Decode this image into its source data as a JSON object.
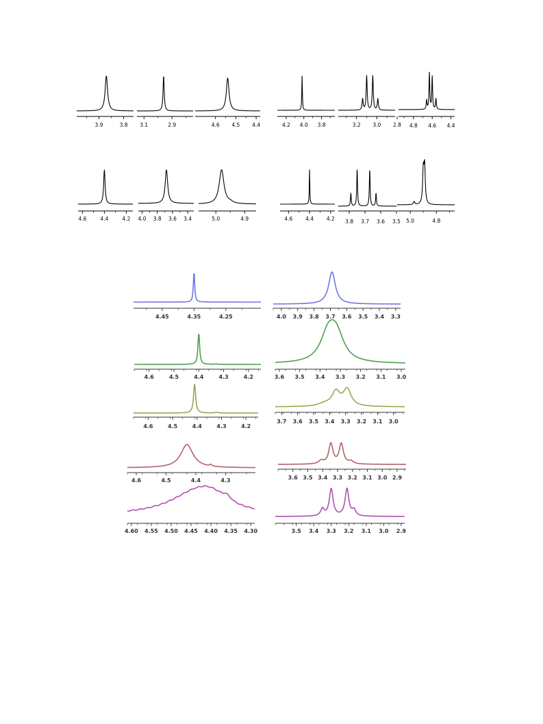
{
  "chart_data": [
    {
      "type": "line",
      "color": "#000000",
      "peaks": [
        [
          3.87,
          0.006,
          1
        ]
      ],
      "xlim": [
        3.99,
        3.76
      ],
      "ticks": [
        3.9,
        3.8
      ],
      "minor": [
        3.95,
        3.85
      ]
    },
    {
      "type": "line",
      "color": "#000000",
      "peaks": [
        [
          2.96,
          0.005,
          1
        ]
      ],
      "xlim": [
        3.15,
        2.75
      ],
      "ticks": [
        3.1,
        2.9
      ],
      "minor": [
        3.0,
        2.8
      ]
    },
    {
      "type": "line",
      "color": "#000000",
      "peaks": [
        [
          4.54,
          0.008,
          1
        ]
      ],
      "xlim": [
        4.7,
        4.38
      ],
      "ticks": [
        4.6,
        4.5,
        4.4
      ],
      "minor": [
        4.55,
        4.45
      ]
    },
    {
      "type": "line",
      "color": "#000000",
      "peaks": [
        [
          4.02,
          0.004,
          1
        ]
      ],
      "xlim": [
        4.3,
        3.65
      ],
      "ticks": [
        4.2,
        4.0,
        3.8
      ],
      "minor": [
        4.1,
        3.9,
        3.7
      ]
    },
    {
      "type": "line",
      "color": "#000000",
      "peaks": [
        [
          3.14,
          0.006,
          0.33
        ],
        [
          3.1,
          0.006,
          1
        ],
        [
          3.04,
          0.006,
          1
        ],
        [
          2.99,
          0.006,
          0.33
        ]
      ],
      "xlim": [
        3.38,
        2.82
      ],
      "ticks": [
        3.2,
        3.0,
        2.8
      ],
      "minor": [
        3.3,
        3.1,
        2.9
      ]
    },
    {
      "type": "line",
      "color": "#000000",
      "peaks": [
        [
          4.66,
          0.005,
          0.25
        ],
        [
          4.63,
          0.005,
          1
        ],
        [
          4.6,
          0.005,
          0.9
        ],
        [
          4.56,
          0.005,
          0.3
        ]
      ],
      "xlim": [
        4.96,
        4.36
      ],
      "ticks": [
        4.8,
        4.6,
        4.4
      ],
      "minor": [
        4.9,
        4.7,
        4.5
      ]
    },
    {
      "type": "line",
      "color": "#000000",
      "peaks": [
        [
          4.4,
          0.008,
          1
        ]
      ],
      "xlim": [
        4.64,
        4.14
      ],
      "ticks": [
        4.6,
        4.4,
        4.2
      ],
      "minor": [
        4.5,
        4.3
      ]
    },
    {
      "type": "line",
      "color": "#000000",
      "peaks": [
        [
          3.68,
          0.02,
          1
        ]
      ],
      "xlim": [
        4.05,
        3.32
      ],
      "ticks": [
        4.0,
        3.8,
        3.6,
        3.4
      ],
      "minor": [
        3.9,
        3.7,
        3.5
      ]
    },
    {
      "type": "line",
      "color": "#000000",
      "peaks": [
        [
          4.98,
          0.01,
          1
        ],
        [
          4.95,
          0.01,
          0.04
        ]
      ],
      "xlim": [
        5.06,
        4.86
      ],
      "ticks": [
        5.0,
        4.9
      ],
      "minor": [
        4.95
      ]
    },
    {
      "type": "line",
      "color": "#000000",
      "peaks": [
        [
          4.4,
          0.003,
          1
        ]
      ],
      "xlim": [
        4.68,
        4.16
      ],
      "ticks": [
        4.6,
        4.4,
        4.2
      ],
      "minor": [
        4.5,
        4.3
      ]
    },
    {
      "type": "line",
      "color": "#000000",
      "peaks": [
        [
          3.79,
          0.003,
          0.35
        ],
        [
          3.75,
          0.003,
          1
        ],
        [
          3.67,
          0.003,
          1
        ],
        [
          3.63,
          0.003,
          0.35
        ]
      ],
      "xlim": [
        3.87,
        3.5
      ],
      "ticks": [
        3.8,
        3.7,
        3.6,
        3.5
      ],
      "minor": []
    },
    {
      "type": "line",
      "color": "#000000",
      "peaks": [
        [
          4.97,
          0.006,
          0.08
        ],
        [
          4.9,
          0.006,
          0.85
        ],
        [
          4.89,
          0.006,
          0.95
        ]
      ],
      "xlim": [
        5.1,
        4.66
      ],
      "ticks": [
        5.0,
        4.8
      ],
      "minor": [
        4.9,
        4.7
      ]
    },
    {
      "type": "line",
      "color": "#7273e6",
      "peaks": [
        [
          4.35,
          0.0025,
          1
        ]
      ],
      "xlim": [
        4.54,
        4.14
      ],
      "ticks": [
        4.45,
        4.35,
        4.25
      ],
      "minor": [
        4.5,
        4.4,
        4.3,
        4.2
      ]
    },
    {
      "type": "line",
      "color": "#7273e6",
      "peaks": [
        [
          3.69,
          0.025,
          1
        ]
      ],
      "xlim": [
        4.05,
        3.27
      ],
      "ticks": [
        4.0,
        3.9,
        3.8,
        3.7,
        3.6,
        3.5,
        3.4,
        3.3
      ],
      "minor": []
    },
    {
      "type": "line",
      "color": "#4f9e4f",
      "peaks": [
        [
          4.4,
          0.004,
          1
        ],
        [
          4.33,
          0.004,
          0.02
        ]
      ],
      "xlim": [
        4.66,
        4.15
      ],
      "ticks": [
        4.6,
        4.5,
        4.4,
        4.3,
        4.2
      ],
      "minor": []
    },
    {
      "type": "line",
      "color": "#4f9e4f",
      "peaks": [
        [
          3.36,
          0.045,
          0.8
        ],
        [
          3.32,
          0.045,
          0.8
        ]
      ],
      "xlim": [
        3.62,
        2.98
      ],
      "ticks": [
        3.6,
        3.5,
        3.4,
        3.3,
        3.2,
        3.1,
        3.0
      ],
      "minor": []
    },
    {
      "type": "line",
      "color": "#97a84e",
      "peaks": [
        [
          4.41,
          0.005,
          1
        ],
        [
          4.32,
          0.005,
          0.03
        ]
      ],
      "xlim": [
        4.66,
        4.15
      ],
      "ticks": [
        4.6,
        4.5,
        4.4,
        4.3,
        4.2
      ],
      "minor": []
    },
    {
      "type": "line",
      "color": "#97a84e",
      "peaks": [
        [
          3.36,
          0.03,
          0.55
        ],
        [
          3.29,
          0.03,
          0.65
        ],
        [
          3.43,
          0.05,
          0.1
        ]
      ],
      "xlim": [
        3.74,
        2.93
      ],
      "ticks": [
        3.7,
        3.6,
        3.5,
        3.4,
        3.3,
        3.2,
        3.1,
        3.0
      ],
      "minor": []
    },
    {
      "type": "line",
      "color": "#b06267",
      "peaks": [
        [
          4.43,
          0.025,
          1
        ],
        [
          4.35,
          0.004,
          0.07
        ]
      ],
      "xlim": [
        4.63,
        4.2
      ],
      "ticks": [
        4.6,
        4.5,
        4.4,
        4.3
      ],
      "minor": []
    },
    {
      "type": "line",
      "color": "#b06267",
      "peaks": [
        [
          3.345,
          0.017,
          0.9
        ],
        [
          3.275,
          0.017,
          0.9
        ],
        [
          3.41,
          0.02,
          0.15
        ],
        [
          3.21,
          0.02,
          0.12
        ]
      ],
      "xlim": [
        3.7,
        2.84
      ],
      "ticks": [
        3.6,
        3.5,
        3.4,
        3.3,
        3.2,
        3.1,
        3.0,
        2.9
      ],
      "minor": []
    },
    {
      "type": "line",
      "color": "#b14db1",
      "peaks": [
        [
          4.44,
          0.08,
          0.85
        ],
        [
          4.4,
          0.05,
          0.5
        ],
        [
          4.36,
          0.012,
          0.18
        ]
      ],
      "xlim": [
        4.61,
        4.29
      ],
      "ticks": [
        4.6,
        4.55,
        4.5,
        4.45,
        4.4,
        4.35,
        4.3
      ],
      "minor": [],
      "decimals": 2
    },
    {
      "type": "line",
      "color": "#b14db1",
      "peaks": [
        [
          3.3,
          0.013,
          0.95
        ],
        [
          3.21,
          0.013,
          0.95
        ],
        [
          3.35,
          0.012,
          0.25
        ],
        [
          3.17,
          0.012,
          0.2
        ]
      ],
      "xlim": [
        3.62,
        2.88
      ],
      "ticks": [
        3.5,
        3.4,
        3.3,
        3.2,
        3.1,
        3.0,
        2.9
      ],
      "minor": []
    }
  ]
}
